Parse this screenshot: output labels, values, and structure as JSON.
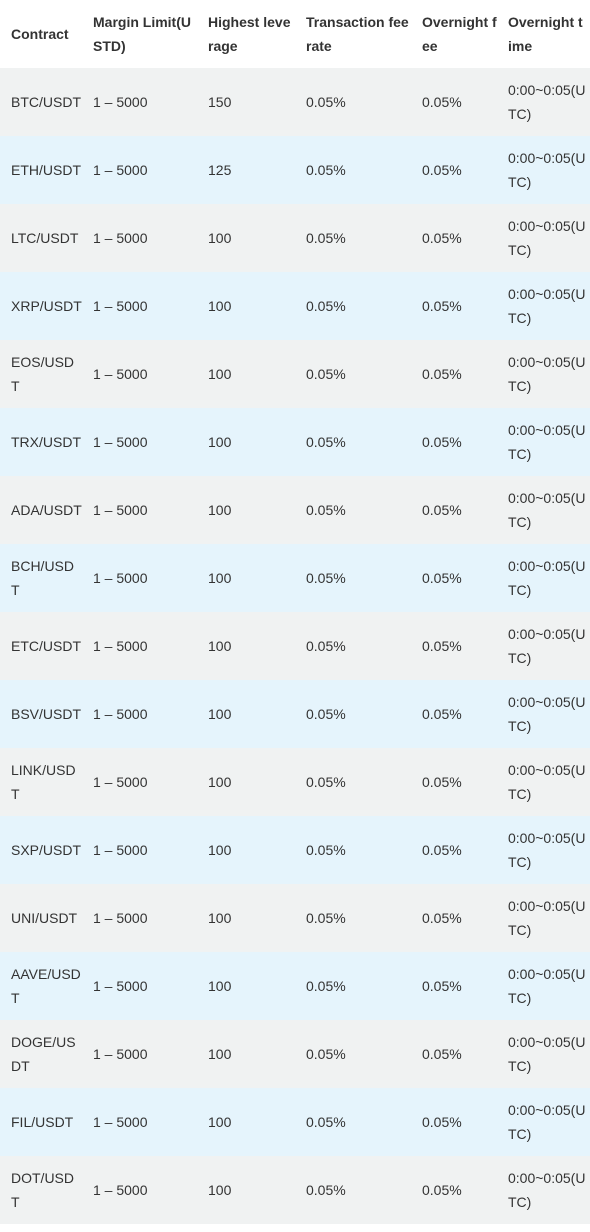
{
  "table": {
    "headers": [
      "Contract",
      "Margin Limit(USTD)",
      "Highest leverage",
      "Transaction fee rate",
      "Overnight fee",
      "Overnight time"
    ],
    "rows": [
      [
        "BTC/USDT",
        "1 – 5000",
        "150",
        "0.05%",
        "0.05%",
        "0:00~0:05(UTC)"
      ],
      [
        "ETH/USDT",
        "1 – 5000",
        "125",
        "0.05%",
        "0.05%",
        "0:00~0:05(UTC)"
      ],
      [
        "LTC/USDT",
        "1 – 5000",
        "100",
        "0.05%",
        "0.05%",
        "0:00~0:05(UTC)"
      ],
      [
        "XRP/USDT",
        "1 – 5000",
        "100",
        "0.05%",
        "0.05%",
        "0:00~0:05(UTC)"
      ],
      [
        "EOS/USDT",
        "1 – 5000",
        "100",
        "0.05%",
        "0.05%",
        "0:00~0:05(UTC)"
      ],
      [
        "TRX/USDT",
        "1 – 5000",
        "100",
        "0.05%",
        "0.05%",
        "0:00~0:05(UTC)"
      ],
      [
        "ADA/USDT",
        "1 – 5000",
        "100",
        "0.05%",
        "0.05%",
        "0:00~0:05(UTC)"
      ],
      [
        "BCH/USDT",
        "1 – 5000",
        "100",
        "0.05%",
        "0.05%",
        "0:00~0:05(UTC)"
      ],
      [
        "ETC/USDT",
        "1 – 5000",
        "100",
        "0.05%",
        "0.05%",
        "0:00~0:05(UTC)"
      ],
      [
        "BSV/USDT",
        "1 – 5000",
        "100",
        "0.05%",
        "0.05%",
        "0:00~0:05(UTC)"
      ],
      [
        "LINK/USDT",
        "1 – 5000",
        "100",
        "0.05%",
        "0.05%",
        "0:00~0:05(UTC)"
      ],
      [
        "SXP/USDT",
        "1 – 5000",
        "100",
        "0.05%",
        "0.05%",
        "0:00~0:05(UTC)"
      ],
      [
        "UNI/USDT",
        "1 – 5000",
        "100",
        "0.05%",
        "0.05%",
        "0:00~0:05(UTC)"
      ],
      [
        "AAVE/USDT",
        "1 – 5000",
        "100",
        "0.05%",
        "0.05%",
        "0:00~0:05(UTC)"
      ],
      [
        "DOGE/USDT",
        "1 – 5000",
        "100",
        "0.05%",
        "0.05%",
        "0:00~0:05(UTC)"
      ],
      [
        "FIL/USDT",
        "1 – 5000",
        "100",
        "0.05%",
        "0.05%",
        "0:00~0:05(UTC)"
      ],
      [
        "DOT/USDT",
        "1 – 5000",
        "100",
        "0.05%",
        "0.05%",
        "0:00~0:05(UTC)"
      ]
    ]
  },
  "colors": {
    "row_odd": "#f0f2f2",
    "row_even": "#e5f4fc",
    "text": "#333333"
  }
}
